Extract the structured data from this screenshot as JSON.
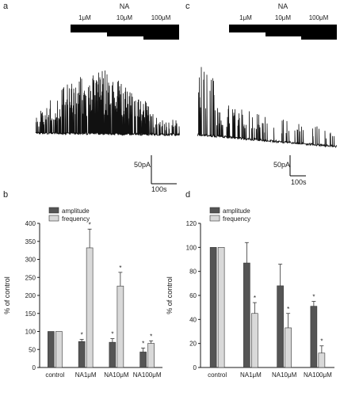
{
  "panels": {
    "a": {
      "letter": "a",
      "agonist": "NA",
      "doses": [
        "1μM",
        "10μM",
        "100μM"
      ],
      "scalebar": {
        "current": "50pA",
        "time": "100s"
      }
    },
    "c": {
      "letter": "c",
      "agonist": "NA",
      "doses": [
        "1μM",
        "10μM",
        "100μM"
      ],
      "scalebar": {
        "current": "50pA",
        "time": "100s"
      }
    }
  },
  "colors": {
    "amplitude": "#555555",
    "frequency": "#d9d9d9",
    "trace": "#111111"
  },
  "chart_data": [
    {
      "panel": "b",
      "type": "bar",
      "ylabel": "% of control",
      "ylim": [
        0,
        400
      ],
      "yticks": [
        0,
        50,
        100,
        150,
        200,
        250,
        300,
        350,
        400
      ],
      "categories": [
        "control",
        "NA1μM",
        "NA10μM",
        "NA100μM"
      ],
      "legend_position": "top-left",
      "series": [
        {
          "name": "amplitude",
          "values": [
            100,
            72,
            70,
            43
          ],
          "errors": [
            0,
            6,
            10,
            11
          ],
          "significant": [
            false,
            true,
            true,
            true
          ]
        },
        {
          "name": "frequency",
          "values": [
            100,
            332,
            226,
            67
          ],
          "errors": [
            0,
            52,
            38,
            7
          ],
          "significant": [
            false,
            true,
            true,
            true
          ]
        }
      ]
    },
    {
      "panel": "d",
      "type": "bar",
      "ylabel": "% of control",
      "ylim": [
        0,
        120
      ],
      "yticks": [
        0,
        20,
        40,
        60,
        80,
        100,
        120
      ],
      "categories": [
        "control",
        "NA1μM",
        "NA10μM",
        "NA100μM"
      ],
      "legend_position": "top-left",
      "series": [
        {
          "name": "amplitude",
          "values": [
            100,
            87,
            68,
            51
          ],
          "errors": [
            0,
            17,
            18,
            4
          ],
          "significant": [
            false,
            false,
            false,
            true
          ]
        },
        {
          "name": "frequency",
          "values": [
            100,
            45,
            33,
            12
          ],
          "errors": [
            0,
            9,
            12,
            6
          ],
          "significant": [
            false,
            true,
            true,
            true
          ]
        }
      ]
    }
  ],
  "significance_marker": "*",
  "panel_letters": {
    "b": "b",
    "d": "d"
  }
}
